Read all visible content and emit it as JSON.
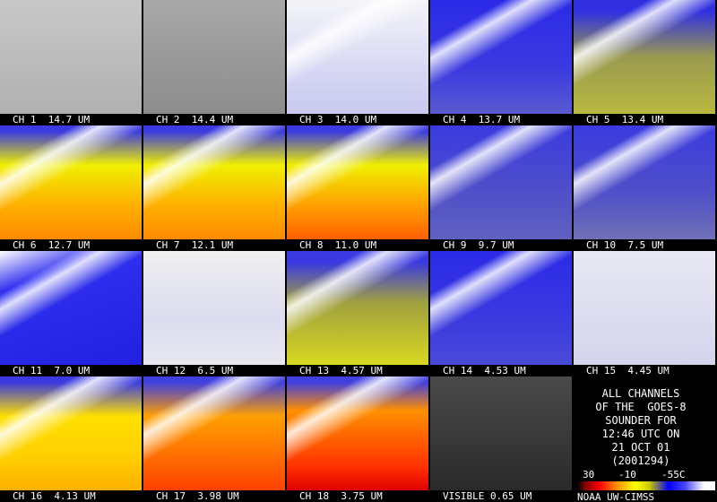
{
  "panels": [
    {
      "label": "CH 1  14.7 UM"
    },
    {
      "label": "CH 2  14.4 UM"
    },
    {
      "label": "CH 3  14.0 UM"
    },
    {
      "label": "CH 4  13.7 UM"
    },
    {
      "label": "CH 5  13.4 UM"
    },
    {
      "label": "CH 6  12.7 UM"
    },
    {
      "label": "CH 7  12.1 UM"
    },
    {
      "label": "CH 8  11.0 UM"
    },
    {
      "label": "CH 9  9.7 UM"
    },
    {
      "label": "CH 10  7.5 UM"
    },
    {
      "label": "CH 11  7.0 UM"
    },
    {
      "label": "CH 12  6.5 UM"
    },
    {
      "label": "CH 13  4.57 UM"
    },
    {
      "label": "CH 14  4.53 UM"
    },
    {
      "label": "CH 15  4.45 UM"
    },
    {
      "label": "CH 16  4.13 UM"
    },
    {
      "label": "CH 17  3.98 UM"
    },
    {
      "label": "CH 18  3.75 UM"
    },
    {
      "label": "VISIBLE 0.65 UM"
    }
  ],
  "info": {
    "lines": [
      "ALL CHANNELS",
      "OF THE  GOES-8",
      "SOUNDER FOR",
      "12:46 UTC ON",
      "21 OCT 01",
      "(2001294)"
    ],
    "scale": [
      "30",
      "-10",
      "-55C"
    ],
    "credit": "NOAA UW-CIMSS"
  }
}
